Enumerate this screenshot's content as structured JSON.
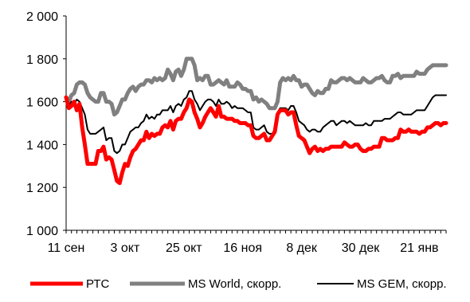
{
  "chart_data": {
    "type": "line",
    "title": "",
    "xlabel": "",
    "ylabel": "",
    "x_tick_labels": [
      "11 сен",
      "3 окт",
      "25 окт",
      "16 ноя",
      "8 дек",
      "30 дек",
      "21 янв"
    ],
    "y_tick_labels": [
      "1 000",
      "1 200",
      "1 400",
      "1 600",
      "1 800",
      "2 000"
    ],
    "y_ticks": [
      1000,
      1200,
      1400,
      1600,
      1800,
      2000
    ],
    "ylim": [
      1000,
      2000
    ],
    "x_range_days": [
      0,
      142
    ],
    "grid": false,
    "legend_position": "bottom",
    "series": [
      {
        "name": "РТС",
        "color": "#ff0000",
        "x": [
          0,
          1,
          2,
          3,
          4,
          5,
          6,
          7,
          8,
          9,
          10,
          11,
          12,
          13,
          14,
          15,
          16,
          17,
          18,
          19,
          20,
          21,
          22,
          23,
          24,
          25,
          26,
          27,
          28,
          29,
          30,
          31,
          32,
          33,
          34,
          35,
          36,
          37,
          38,
          39,
          40,
          41,
          42,
          43,
          44,
          45,
          46,
          47,
          48,
          49,
          50,
          51,
          52,
          53,
          54,
          55,
          56,
          57,
          58,
          59,
          60,
          61,
          62,
          63,
          64,
          65,
          66,
          67,
          68,
          69,
          70,
          71,
          72,
          73,
          74,
          75,
          76,
          77,
          78,
          79,
          80,
          81,
          82,
          83,
          84,
          85,
          86,
          87,
          88,
          89,
          90,
          91,
          92,
          93,
          94,
          95,
          96,
          97,
          98,
          99,
          100,
          101,
          102,
          103,
          104,
          105,
          106,
          107,
          108,
          109,
          110,
          111,
          112,
          113,
          114,
          115,
          116,
          117,
          118,
          119,
          120,
          121,
          122,
          123,
          124,
          125,
          126,
          127,
          128,
          129,
          130,
          131,
          132,
          133,
          134,
          135,
          136,
          137,
          138,
          139,
          140,
          141,
          142
        ],
        "values": [
          1620,
          1570,
          1580,
          1600,
          1560,
          1590,
          1480,
          1400,
          1310,
          1310,
          1310,
          1310,
          1370,
          1370,
          1390,
          1330,
          1340,
          1330,
          1280,
          1230,
          1220,
          1270,
          1310,
          1300,
          1340,
          1370,
          1380,
          1400,
          1420,
          1420,
          1460,
          1430,
          1450,
          1440,
          1450,
          1450,
          1480,
          1490,
          1480,
          1510,
          1470,
          1510,
          1520,
          1520,
          1550,
          1570,
          1610,
          1600,
          1550,
          1520,
          1480,
          1500,
          1530,
          1550,
          1570,
          1550,
          1530,
          1580,
          1530,
          1530,
          1520,
          1520,
          1520,
          1510,
          1510,
          1500,
          1500,
          1500,
          1490,
          1490,
          1440,
          1430,
          1430,
          1440,
          1450,
          1420,
          1420,
          1440,
          1460,
          1540,
          1560,
          1560,
          1560,
          1540,
          1550,
          1550,
          1490,
          1440,
          1430,
          1420,
          1390,
          1360,
          1380,
          1390,
          1370,
          1380,
          1370,
          1380,
          1380,
          1390,
          1390,
          1390,
          1390,
          1390,
          1410,
          1400,
          1390,
          1390,
          1400,
          1400,
          1380,
          1370,
          1370,
          1380,
          1380,
          1390,
          1390,
          1390,
          1430,
          1430,
          1420,
          1420,
          1420,
          1430,
          1430,
          1470,
          1460,
          1460,
          1470,
          1460,
          1460,
          1460,
          1450,
          1460,
          1460,
          1480,
          1480,
          1490,
          1500,
          1500,
          1490,
          1500,
          1500
        ]
      },
      {
        "name": "MS World, скорр.",
        "color": "#808080",
        "x": [
          0,
          1,
          2,
          3,
          4,
          5,
          6,
          7,
          8,
          9,
          10,
          11,
          12,
          13,
          14,
          15,
          16,
          17,
          18,
          19,
          20,
          21,
          22,
          23,
          24,
          25,
          26,
          27,
          28,
          29,
          30,
          31,
          32,
          33,
          34,
          35,
          36,
          37,
          38,
          39,
          40,
          41,
          42,
          43,
          44,
          45,
          46,
          47,
          48,
          49,
          50,
          51,
          52,
          53,
          54,
          55,
          56,
          57,
          58,
          59,
          60,
          61,
          62,
          63,
          64,
          65,
          66,
          67,
          68,
          69,
          70,
          71,
          72,
          73,
          74,
          75,
          76,
          77,
          78,
          79,
          80,
          81,
          82,
          83,
          84,
          85,
          86,
          87,
          88,
          89,
          90,
          91,
          92,
          93,
          94,
          95,
          96,
          97,
          98,
          99,
          100,
          101,
          102,
          103,
          104,
          105,
          106,
          107,
          108,
          109,
          110,
          111,
          112,
          113,
          114,
          115,
          116,
          117,
          118,
          119,
          120,
          121,
          122,
          123,
          124,
          125,
          126,
          127,
          128,
          129,
          130,
          131,
          132,
          133,
          134,
          135,
          136,
          137,
          138,
          139,
          140,
          141,
          142
        ],
        "values": [
          1620,
          1600,
          1630,
          1640,
          1680,
          1690,
          1690,
          1680,
          1640,
          1620,
          1610,
          1600,
          1600,
          1640,
          1640,
          1600,
          1600,
          1590,
          1540,
          1550,
          1580,
          1610,
          1610,
          1640,
          1660,
          1670,
          1650,
          1670,
          1680,
          1680,
          1700,
          1700,
          1690,
          1710,
          1700,
          1710,
          1700,
          1710,
          1750,
          1730,
          1700,
          1740,
          1750,
          1720,
          1750,
          1800,
          1800,
          1800,
          1770,
          1700,
          1710,
          1700,
          1720,
          1720,
          1680,
          1680,
          1690,
          1700,
          1690,
          1680,
          1700,
          1670,
          1670,
          1670,
          1690,
          1680,
          1660,
          1660,
          1650,
          1650,
          1610,
          1620,
          1600,
          1610,
          1600,
          1590,
          1570,
          1570,
          1570,
          1600,
          1690,
          1710,
          1700,
          1710,
          1700,
          1720,
          1700,
          1700,
          1670,
          1680,
          1680,
          1660,
          1640,
          1630,
          1650,
          1640,
          1640,
          1660,
          1660,
          1700,
          1690,
          1690,
          1700,
          1710,
          1710,
          1700,
          1710,
          1700,
          1690,
          1690,
          1690,
          1710,
          1700,
          1690,
          1690,
          1700,
          1710,
          1710,
          1720,
          1700,
          1690,
          1690,
          1720,
          1720,
          1730,
          1710,
          1720,
          1720,
          1720,
          1720,
          1720,
          1740,
          1730,
          1730,
          1730,
          1750,
          1760,
          1770,
          1770,
          1770,
          1770,
          1770,
          1770
        ]
      },
      {
        "name": "MS GEM,  скорр.",
        "color": "#000000",
        "x": [
          0,
          1,
          2,
          3,
          4,
          5,
          6,
          7,
          8,
          9,
          10,
          11,
          12,
          13,
          14,
          15,
          16,
          17,
          18,
          19,
          20,
          21,
          22,
          23,
          24,
          25,
          26,
          27,
          28,
          29,
          30,
          31,
          32,
          33,
          34,
          35,
          36,
          37,
          38,
          39,
          40,
          41,
          42,
          43,
          44,
          45,
          46,
          47,
          48,
          49,
          50,
          51,
          52,
          53,
          54,
          55,
          56,
          57,
          58,
          59,
          60,
          61,
          62,
          63,
          64,
          65,
          66,
          67,
          68,
          69,
          70,
          71,
          72,
          73,
          74,
          75,
          76,
          77,
          78,
          79,
          80,
          81,
          82,
          83,
          84,
          85,
          86,
          87,
          88,
          89,
          90,
          91,
          92,
          93,
          94,
          95,
          96,
          97,
          98,
          99,
          100,
          101,
          102,
          103,
          104,
          105,
          106,
          107,
          108,
          109,
          110,
          111,
          112,
          113,
          114,
          115,
          116,
          117,
          118,
          119,
          120,
          121,
          122,
          123,
          124,
          125,
          126,
          127,
          128,
          129,
          130,
          131,
          132,
          133,
          134,
          135,
          136,
          137,
          138,
          139,
          140,
          141,
          142
        ],
        "values": [
          1610,
          1580,
          1600,
          1590,
          1610,
          1600,
          1570,
          1540,
          1470,
          1450,
          1450,
          1450,
          1460,
          1470,
          1480,
          1420,
          1430,
          1430,
          1370,
          1360,
          1370,
          1400,
          1400,
          1430,
          1460,
          1470,
          1480,
          1480,
          1500,
          1510,
          1540,
          1520,
          1530,
          1520,
          1540,
          1540,
          1560,
          1560,
          1560,
          1580,
          1550,
          1580,
          1590,
          1580,
          1610,
          1620,
          1650,
          1650,
          1610,
          1590,
          1560,
          1580,
          1600,
          1610,
          1610,
          1600,
          1580,
          1610,
          1590,
          1590,
          1600,
          1590,
          1570,
          1580,
          1570,
          1570,
          1570,
          1560,
          1550,
          1550,
          1480,
          1470,
          1470,
          1480,
          1490,
          1460,
          1450,
          1450,
          1470,
          1550,
          1570,
          1570,
          1570,
          1560,
          1580,
          1580,
          1550,
          1510,
          1500,
          1490,
          1470,
          1460,
          1470,
          1470,
          1460,
          1460,
          1480,
          1490,
          1500,
          1510,
          1510,
          1490,
          1500,
          1510,
          1510,
          1500,
          1510,
          1500,
          1490,
          1490,
          1490,
          1490,
          1500,
          1490,
          1490,
          1510,
          1510,
          1510,
          1510,
          1520,
          1520,
          1520,
          1530,
          1540,
          1550,
          1550,
          1540,
          1540,
          1540,
          1540,
          1550,
          1560,
          1560,
          1560,
          1560,
          1580,
          1600,
          1620,
          1630,
          1630,
          1630,
          1630,
          1630
        ]
      }
    ]
  }
}
